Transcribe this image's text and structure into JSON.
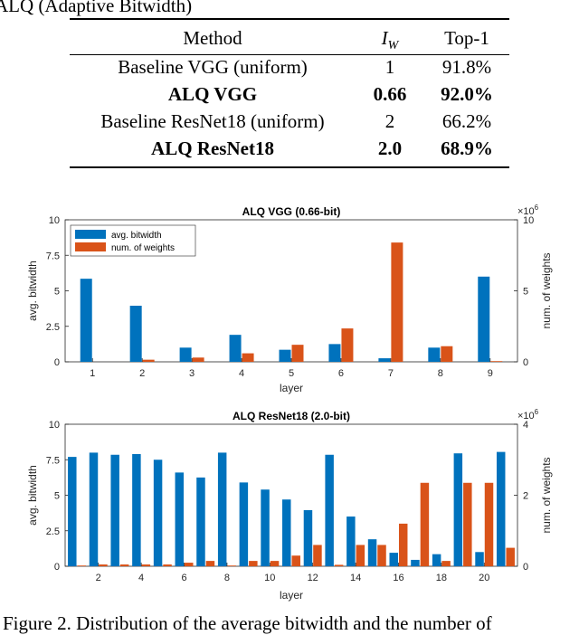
{
  "heading": "ALQ (Adaptive Bitwidth)",
  "table": {
    "headers": {
      "method": "Method",
      "iw_symbol": "I",
      "iw_sub": "W",
      "top1": "Top-1"
    },
    "rows": [
      {
        "method": "Baseline VGG (uniform)",
        "iw": "1",
        "top1": "91.8%",
        "bold": false
      },
      {
        "method": "ALQ VGG",
        "iw": "0.66",
        "top1": "92.0%",
        "bold": true
      },
      {
        "method": "Baseline ResNet18 (uniform)",
        "iw": "2",
        "top1": "66.2%",
        "bold": false
      },
      {
        "method": "ALQ ResNet18",
        "iw": "2.0",
        "top1": "68.9%",
        "bold": true
      }
    ]
  },
  "chart_data": [
    {
      "type": "bar",
      "title": "ALQ VGG (0.66-bit)",
      "xlabel": "layer",
      "ylabel": "avg. bitwidth",
      "y2label": "num. of weights",
      "y2_multiplier": "×10",
      "y2_exponent": "6",
      "categories": [
        1,
        2,
        3,
        4,
        5,
        6,
        7,
        8,
        9
      ],
      "x_ticks": [
        "1",
        "2",
        "3",
        "4",
        "5",
        "6",
        "7",
        "8",
        "9"
      ],
      "ylim": [
        0,
        10
      ],
      "y_ticks": [
        "0",
        "2.5",
        "5",
        "7.5",
        "10"
      ],
      "y2lim": [
        0,
        10
      ],
      "y2_ticks": [
        "0",
        "5",
        "10"
      ],
      "legend_position": "top-left",
      "series": [
        {
          "name": "avg. bitwidth",
          "color": "#0072BD",
          "axis": "left",
          "values": [
            5.85,
            3.95,
            1.0,
            1.9,
            0.85,
            1.25,
            0.25,
            1.0,
            6.0
          ]
        },
        {
          "name": "num. of weights",
          "color": "#D95319",
          "axis": "right",
          "values": [
            0.0,
            0.15,
            0.3,
            0.6,
            1.2,
            2.35,
            8.4,
            1.1,
            0.05
          ]
        }
      ]
    },
    {
      "type": "bar",
      "title": "ALQ ResNet18 (2.0-bit)",
      "xlabel": "layer",
      "ylabel": "avg. bitwidth",
      "y2label": "num. of weights",
      "y2_multiplier": "×10",
      "y2_exponent": "6",
      "categories": [
        1,
        2,
        3,
        4,
        5,
        6,
        7,
        8,
        9,
        10,
        11,
        12,
        13,
        14,
        15,
        16,
        17,
        18,
        19,
        20,
        21
      ],
      "x_ticks": [
        "2",
        "4",
        "6",
        "8",
        "10",
        "12",
        "14",
        "16",
        "18",
        "20"
      ],
      "ylim": [
        0,
        10
      ],
      "y_ticks": [
        "0",
        "2.5",
        "5",
        "7.5",
        "10"
      ],
      "y2lim": [
        0,
        4
      ],
      "y2_ticks": [
        "0",
        "2",
        "4"
      ],
      "series": [
        {
          "name": "avg. bitwidth",
          "color": "#0072BD",
          "axis": "left",
          "values": [
            7.7,
            8.0,
            7.85,
            7.9,
            7.5,
            6.6,
            6.25,
            8.0,
            5.9,
            5.4,
            4.7,
            3.95,
            7.85,
            3.5,
            1.9,
            0.95,
            0.45,
            0.85,
            7.95,
            1.0,
            8.05
          ]
        },
        {
          "name": "num. of weights",
          "color": "#D95319",
          "axis": "right",
          "values": [
            0.02,
            0.05,
            0.05,
            0.05,
            0.05,
            0.1,
            0.15,
            0.02,
            0.15,
            0.15,
            0.3,
            0.6,
            0.04,
            0.6,
            0.6,
            1.2,
            2.35,
            0.15,
            2.35,
            2.35,
            0.52
          ]
        }
      ]
    }
  ],
  "caption": "Figure 2. Distribution of the average bitwidth and the number of"
}
